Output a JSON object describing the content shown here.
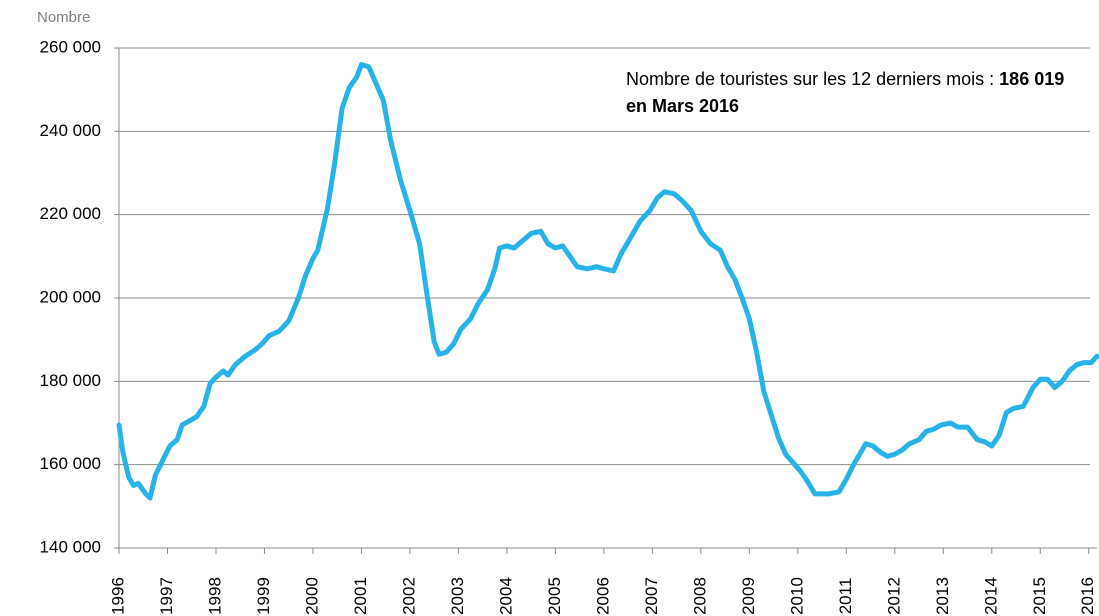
{
  "chart_data": {
    "type": "line",
    "y_axis_label": "Nombre",
    "annotation": {
      "text": "Nombre de touristes sur les 12 derniers mois :",
      "highlight": "186 019 en Mars 2016"
    },
    "color": "#27b3e8",
    "grid": true,
    "xlim": [
      1996,
      2016.17
    ],
    "xticks": [
      1996,
      1997,
      1998,
      1999,
      2000,
      2001,
      2002,
      2003,
      2004,
      2005,
      2006,
      2007,
      2008,
      2009,
      2010,
      2011,
      2012,
      2013,
      2014,
      2015,
      2016
    ],
    "ylim": [
      140000,
      260000
    ],
    "yticks": [
      {
        "value": 140000,
        "label": "140 000"
      },
      {
        "value": 160000,
        "label": "160 000"
      },
      {
        "value": 180000,
        "label": "180 000"
      },
      {
        "value": 200000,
        "label": "200 000"
      },
      {
        "value": 220000,
        "label": "220 000"
      },
      {
        "value": 240000,
        "label": "240 000"
      },
      {
        "value": 260000,
        "label": "260 000"
      }
    ],
    "x": [
      1996.0,
      1996.08,
      1996.2,
      1996.3,
      1996.4,
      1996.55,
      1996.64,
      1996.75,
      1996.9,
      1997.05,
      1997.2,
      1997.3,
      1997.45,
      1997.6,
      1997.75,
      1997.88,
      1998.0,
      1998.15,
      1998.25,
      1998.4,
      1998.6,
      1998.8,
      1998.95,
      1999.1,
      1999.3,
      1999.5,
      1999.7,
      1999.85,
      2000.0,
      2000.1,
      2000.3,
      2000.45,
      2000.6,
      2000.75,
      2000.9,
      2001.0,
      2001.15,
      2001.3,
      2001.45,
      2001.6,
      2001.8,
      2002.0,
      2002.2,
      2002.35,
      2002.5,
      2002.6,
      2002.75,
      2002.9,
      2003.05,
      2003.25,
      2003.4,
      2003.6,
      2003.75,
      2003.85,
      2004.0,
      2004.15,
      2004.3,
      2004.5,
      2004.7,
      2004.85,
      2005.0,
      2005.15,
      2005.3,
      2005.45,
      2005.65,
      2005.85,
      2006.0,
      2006.2,
      2006.35,
      2006.55,
      2006.75,
      2006.95,
      2007.1,
      2007.25,
      2007.45,
      2007.6,
      2007.8,
      2008.0,
      2008.2,
      2008.4,
      2008.55,
      2008.7,
      2008.85,
      2009.0,
      2009.15,
      2009.3,
      2009.45,
      2009.6,
      2009.75,
      2009.9,
      2010.05,
      2010.2,
      2010.35,
      2010.5,
      2010.65,
      2010.85,
      2011.0,
      2011.15,
      2011.3,
      2011.4,
      2011.55,
      2011.7,
      2011.85,
      2012.0,
      2012.15,
      2012.3,
      2012.5,
      2012.65,
      2012.8,
      2012.95,
      2013.15,
      2013.3,
      2013.5,
      2013.7,
      2013.85,
      2014.0,
      2014.15,
      2014.3,
      2014.45,
      2014.65,
      2014.85,
      2015.0,
      2015.15,
      2015.3,
      2015.45,
      2015.6,
      2015.75,
      2015.9,
      2016.05,
      2016.17
    ],
    "values": [
      169500,
      163000,
      157000,
      155000,
      155500,
      153000,
      152000,
      157500,
      161000,
      164500,
      166000,
      169500,
      170500,
      171500,
      174000,
      179500,
      181000,
      182500,
      181500,
      184000,
      186000,
      187500,
      189000,
      191000,
      192000,
      194500,
      200000,
      205500,
      209500,
      211500,
      221500,
      232500,
      245500,
      250500,
      253000,
      256000,
      255500,
      251500,
      247500,
      238000,
      228500,
      221000,
      213000,
      201000,
      189500,
      186500,
      187000,
      189000,
      192500,
      195000,
      198500,
      202000,
      207000,
      212000,
      212500,
      212000,
      213500,
      215500,
      216000,
      213000,
      212000,
      212500,
      210000,
      207500,
      207000,
      207500,
      207000,
      206500,
      210500,
      214500,
      218500,
      221000,
      224000,
      225500,
      225000,
      223500,
      221000,
      216000,
      213000,
      211500,
      207500,
      204500,
      200000,
      195000,
      187000,
      177500,
      172000,
      166500,
      162500,
      160500,
      158500,
      156000,
      153000,
      153000,
      153000,
      153500,
      156500,
      160000,
      163000,
      165000,
      164500,
      163000,
      162000,
      162500,
      163500,
      165000,
      166000,
      168000,
      168500,
      169500,
      170000,
      169000,
      169000,
      166000,
      165500,
      164500,
      167000,
      172500,
      173500,
      174000,
      178500,
      180500,
      180500,
      178500,
      180000,
      182500,
      184000,
      184500,
      184500,
      186019
    ]
  }
}
